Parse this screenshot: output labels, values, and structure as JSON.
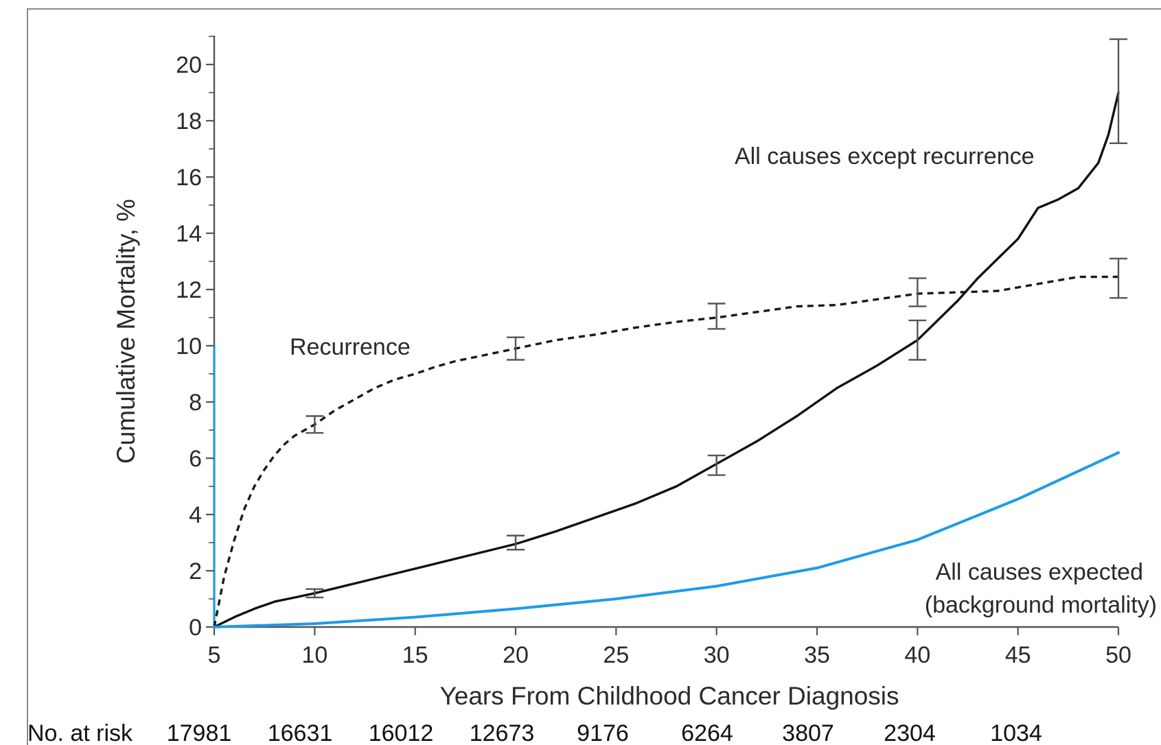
{
  "chart_data": {
    "type": "line",
    "xlabel": "Years From Childhood Cancer Diagnosis",
    "ylabel": "Cumulative Mortality, %",
    "xlim": [
      5,
      50
    ],
    "ylim": [
      0,
      20
    ],
    "x_ticks": [
      5,
      10,
      15,
      20,
      25,
      30,
      35,
      40,
      45,
      50
    ],
    "y_ticks": [
      0,
      2,
      4,
      6,
      8,
      10,
      12,
      14,
      16,
      18,
      20
    ],
    "grid": false,
    "legend": "none",
    "series": [
      {
        "name": "Recurrence",
        "style": "dashed",
        "color": "#1a1a1a",
        "x": [
          5,
          5.5,
          6,
          6.5,
          7,
          7.5,
          8,
          8.5,
          9,
          9.5,
          10,
          11,
          12,
          13,
          14,
          15,
          16,
          17,
          18,
          19,
          20,
          22,
          24,
          26,
          28,
          30,
          32,
          34,
          36,
          38,
          40,
          42,
          44,
          46,
          48,
          50
        ],
        "y": [
          0,
          1.8,
          3.1,
          4.2,
          5.0,
          5.6,
          6.1,
          6.5,
          6.8,
          7.0,
          7.2,
          7.7,
          8.1,
          8.5,
          8.8,
          9.0,
          9.25,
          9.45,
          9.6,
          9.75,
          9.9,
          10.2,
          10.4,
          10.65,
          10.85,
          11.0,
          11.2,
          11.4,
          11.45,
          11.65,
          11.85,
          11.9,
          11.95,
          12.2,
          12.45,
          12.45
        ],
        "error_bars": [
          {
            "x": 10,
            "low": 6.9,
            "high": 7.5
          },
          {
            "x": 20,
            "low": 9.5,
            "high": 10.3
          },
          {
            "x": 30,
            "low": 10.6,
            "high": 11.5
          },
          {
            "x": 40,
            "low": 11.4,
            "high": 12.4
          },
          {
            "x": 50,
            "low": 11.7,
            "high": 13.1
          }
        ],
        "label_text": "Recurrence"
      },
      {
        "name": "All causes except recurrence",
        "style": "solid",
        "color": "#111111",
        "x": [
          5,
          6,
          7,
          8,
          9,
          10,
          12,
          14,
          16,
          18,
          20,
          22,
          24,
          26,
          28,
          30,
          32,
          34,
          36,
          38,
          40,
          41,
          42,
          43,
          44,
          45,
          46,
          47,
          48,
          49,
          49.5,
          50
        ],
        "y": [
          0,
          0.35,
          0.65,
          0.9,
          1.05,
          1.2,
          1.55,
          1.9,
          2.25,
          2.6,
          2.95,
          3.4,
          3.9,
          4.4,
          5.0,
          5.8,
          6.6,
          7.5,
          8.5,
          9.3,
          10.2,
          10.9,
          11.6,
          12.4,
          13.1,
          13.8,
          14.9,
          15.2,
          15.6,
          16.5,
          17.5,
          19.0
        ],
        "error_bars": [
          {
            "x": 10,
            "low": 1.05,
            "high": 1.35
          },
          {
            "x": 20,
            "low": 2.75,
            "high": 3.25
          },
          {
            "x": 30,
            "low": 5.4,
            "high": 6.1
          },
          {
            "x": 40,
            "low": 9.5,
            "high": 10.9
          },
          {
            "x": 50,
            "low": 17.2,
            "high": 20.9
          }
        ],
        "label_text": "All causes except recurrence"
      },
      {
        "name": "All causes expected (background mortality)",
        "style": "solid",
        "color": "#1e9be8",
        "x": [
          5,
          10,
          15,
          20,
          25,
          30,
          35,
          40,
          45,
          50
        ],
        "y": [
          0,
          0.12,
          0.35,
          0.65,
          1.0,
          1.45,
          2.1,
          3.1,
          4.55,
          6.2
        ],
        "label_lines": [
          "All causes expected",
          "(background mortality)"
        ]
      }
    ],
    "number_at_risk": {
      "label": "No. at risk",
      "values": [
        "17981",
        "16631",
        "16012",
        "12673",
        "9176",
        "6264",
        "3807",
        "2304",
        "1034"
      ]
    }
  }
}
